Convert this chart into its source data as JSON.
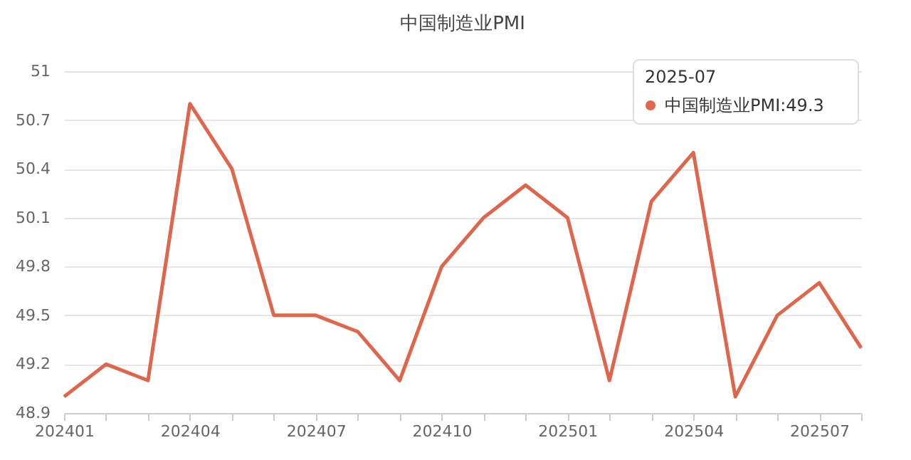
{
  "chart_data": {
    "type": "line",
    "title": "中国制造业PMI",
    "categories": [
      "202401",
      null,
      null,
      "202404",
      null,
      null,
      "202407",
      null,
      null,
      "202410",
      null,
      null,
      "202501",
      null,
      null,
      "202504",
      null,
      null,
      "202507",
      null
    ],
    "series": [
      {
        "color": "#e0654b",
        "values": [
          49.0,
          49.2,
          49.1,
          50.8,
          50.4,
          49.5,
          49.5,
          49.4,
          49.1,
          49.8,
          50.1,
          50.3,
          50.1,
          49.1,
          50.2,
          50.5,
          49.0,
          49.5,
          49.7,
          49.3
        ]
      }
    ],
    "ylim": [
      48.9,
      51
    ],
    "yticks": [
      48.9,
      49.2,
      49.5,
      49.8,
      50.1,
      50.4,
      50.7,
      51
    ],
    "grid": "y",
    "marker": "none",
    "annotations": [
      "2025-07",
      "中国制造业PMI:49.3"
    ]
  }
}
